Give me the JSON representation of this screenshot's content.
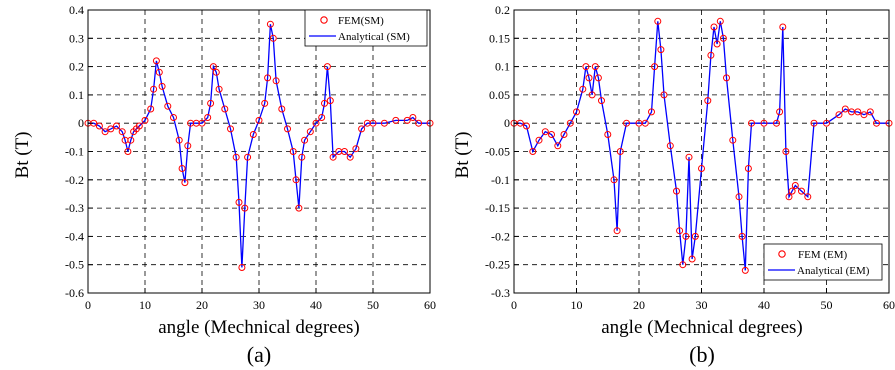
{
  "colors": {
    "fem": "#ff0000",
    "analytical": "#0000ff",
    "grid": "#000000"
  },
  "chart_data": [
    {
      "type": "line",
      "caption": "(a)",
      "xlabel": "angle (Mechnical degrees)",
      "ylabel": "Bt (T)",
      "xlim": [
        0,
        60
      ],
      "ylim": [
        -0.6,
        0.4
      ],
      "xticks": [
        0,
        10,
        20,
        30,
        40,
        50,
        60
      ],
      "yticks": [
        0.4,
        0.3,
        0.2,
        0.1,
        0,
        -0.1,
        -0.2,
        -0.3,
        -0.4,
        -0.5,
        -0.6
      ],
      "grid": true,
      "legend_position": "top-right",
      "series": [
        {
          "name": "FEM(SM)",
          "style": "markers-circle"
        },
        {
          "name": "Analytical (SM)",
          "style": "line"
        }
      ],
      "x": [
        0,
        1,
        2,
        3,
        4,
        5,
        6,
        6.5,
        7,
        7.5,
        8,
        8.5,
        9,
        10,
        11,
        11.5,
        12,
        12.5,
        13,
        14,
        15,
        16,
        16.5,
        17,
        17.5,
        18,
        19,
        20,
        21,
        21.5,
        22,
        22.5,
        23,
        24,
        25,
        26,
        26.5,
        27,
        27.5,
        28,
        29,
        30,
        31,
        31.5,
        32,
        32.5,
        33,
        34,
        35,
        36,
        36.5,
        37,
        37.5,
        38,
        39,
        40,
        41,
        41.5,
        42,
        42.5,
        43,
        44,
        45,
        46,
        47,
        48,
        49,
        50,
        52,
        54,
        56,
        57,
        58,
        60
      ],
      "y": [
        0,
        0,
        -0.01,
        -0.03,
        -0.02,
        -0.01,
        -0.03,
        -0.06,
        -0.1,
        -0.06,
        -0.03,
        -0.02,
        -0.01,
        0.01,
        0.05,
        0.12,
        0.22,
        0.18,
        0.13,
        0.06,
        0.02,
        -0.06,
        -0.16,
        -0.21,
        -0.08,
        0,
        0,
        0,
        0.02,
        0.07,
        0.2,
        0.18,
        0.12,
        0.05,
        -0.02,
        -0.12,
        -0.28,
        -0.51,
        -0.3,
        -0.12,
        -0.04,
        0.01,
        0.07,
        0.16,
        0.35,
        0.3,
        0.15,
        0.05,
        -0.02,
        -0.1,
        -0.2,
        -0.3,
        -0.12,
        -0.06,
        -0.03,
        0,
        0.02,
        0.07,
        0.2,
        0.08,
        -0.12,
        -0.1,
        -0.1,
        -0.12,
        -0.09,
        -0.02,
        0,
        0,
        0,
        0.01,
        0.01,
        0.02,
        0,
        0
      ]
    },
    {
      "type": "line",
      "caption": "(b)",
      "xlabel": "angle (Mechnical degrees)",
      "ylabel": "Bt (T)",
      "xlim": [
        0,
        60
      ],
      "ylim": [
        -0.3,
        0.2
      ],
      "xticks": [
        0,
        10,
        20,
        30,
        40,
        50,
        60
      ],
      "yticks": [
        0.2,
        0.15,
        0.1,
        0.05,
        0,
        -0.05,
        -0.1,
        -0.15,
        -0.2,
        -0.25,
        -0.3
      ],
      "grid": true,
      "legend_position": "bottom-right",
      "series": [
        {
          "name": "FEM (EM)",
          "style": "markers-circle"
        },
        {
          "name": "Analytical (EM)",
          "style": "line"
        }
      ],
      "x": [
        0,
        1,
        2,
        3,
        4,
        5,
        6,
        7,
        8,
        9,
        10,
        11,
        11.5,
        12,
        12.5,
        13,
        13.5,
        14,
        15,
        16,
        16.5,
        17,
        18,
        20,
        21,
        22,
        22.5,
        23,
        23.5,
        24,
        25,
        26,
        26.5,
        27,
        27.5,
        28,
        28.5,
        29,
        30,
        31,
        31.5,
        32,
        32.5,
        33,
        33.5,
        34,
        35,
        36,
        36.5,
        37,
        37.5,
        38,
        40,
        42,
        42.5,
        43,
        43.5,
        44,
        44.5,
        45,
        46,
        47,
        48,
        50,
        52,
        53,
        54,
        55,
        56,
        57,
        58,
        60
      ],
      "y": [
        0,
        0,
        -0.005,
        -0.05,
        -0.03,
        -0.015,
        -0.02,
        -0.04,
        -0.02,
        0,
        0.02,
        0.06,
        0.1,
        0.08,
        0.05,
        0.1,
        0.08,
        0.04,
        -0.02,
        -0.1,
        -0.19,
        -0.05,
        0,
        0,
        0,
        0.02,
        0.1,
        0.18,
        0.13,
        0.05,
        -0.04,
        -0.12,
        -0.19,
        -0.25,
        -0.2,
        -0.06,
        -0.24,
        -0.2,
        -0.08,
        0.04,
        0.12,
        0.17,
        0.14,
        0.18,
        0.15,
        0.08,
        -0.03,
        -0.13,
        -0.2,
        -0.26,
        -0.08,
        0,
        0,
        0,
        0.02,
        0.17,
        -0.05,
        -0.13,
        -0.12,
        -0.11,
        -0.12,
        -0.13,
        0,
        0,
        0.015,
        0.025,
        0.02,
        0.02,
        0.015,
        0.02,
        0,
        0
      ]
    }
  ]
}
